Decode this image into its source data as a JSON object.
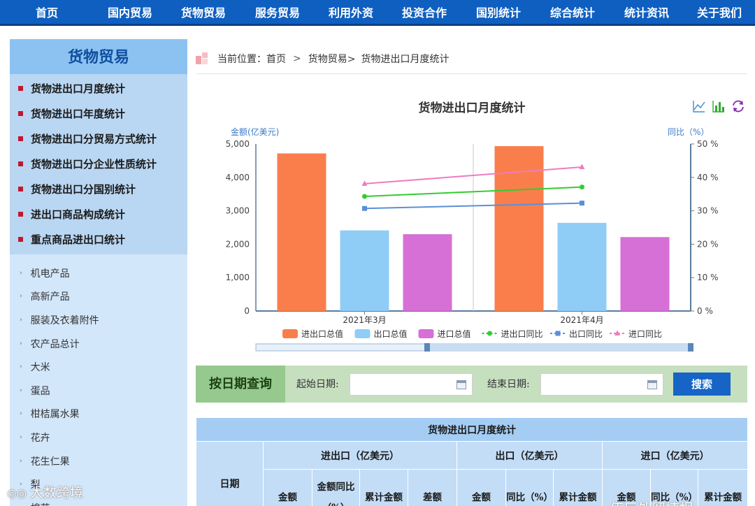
{
  "nav": {
    "items": [
      "首页",
      "国内贸易",
      "货物贸易",
      "服务贸易",
      "利用外资",
      "投资合作",
      "国别统计",
      "综合统计",
      "统计资讯",
      "关于我们"
    ]
  },
  "sidebar": {
    "title": "货物贸易",
    "main_items": [
      "货物进出口月度统计",
      "货物进出口年度统计",
      "货物进出口分贸易方式统计",
      "货物进出口分企业性质统计",
      "货物进出口分国别统计",
      "进出口商品构成统计",
      "重点商品进出口统计"
    ],
    "sub_items": [
      "机电产品",
      "高新产品",
      "服装及衣着附件",
      "农产品总计",
      "大米",
      "蛋品",
      "柑桔属水果",
      "花卉",
      "花生仁果",
      "梨",
      "棉花"
    ]
  },
  "breadcrumb": {
    "prefix": "当前位置：",
    "home": "首页",
    "sep": ">",
    "level1": "货物贸易>",
    "current": "货物进出口月度统计"
  },
  "chart_data": {
    "type": "bar",
    "title": "货物进出口月度统计",
    "categories": [
      "2021年3月",
      "2021年4月"
    ],
    "y_left": {
      "label": "金额(亿美元)",
      "min": 0,
      "max": 5000,
      "ticks": [
        "0",
        "1,000",
        "2,000",
        "3,000",
        "4,000",
        "5,000"
      ]
    },
    "y_right": {
      "label": "同比（%）",
      "min": 0,
      "max": 50,
      "ticks": [
        "0 %",
        "10 %",
        "20 %",
        "30 %",
        "40 %",
        "50 %"
      ]
    },
    "bar_series": [
      {
        "name": "进出口总值",
        "color": "#fa7e4b",
        "values": [
          4717,
          4935
        ]
      },
      {
        "name": "出口总值",
        "color": "#8fcdf7",
        "values": [
          2413,
          2639
        ]
      },
      {
        "name": "进口总值",
        "color": "#d670d6",
        "values": [
          2299,
          2213
        ]
      }
    ],
    "line_series": [
      {
        "name": "进出口同比",
        "color": "#33cc33",
        "marker": "circle",
        "values": [
          34.3,
          37.1
        ]
      },
      {
        "name": "出口同比",
        "color": "#5b8fd8",
        "marker": "square",
        "values": [
          30.7,
          32.3
        ]
      },
      {
        "name": "进口同比",
        "color": "#f07bbf",
        "marker": "triangle",
        "values": [
          38.1,
          43.1
        ]
      }
    ],
    "legend_position": "bottom",
    "grid": false
  },
  "search": {
    "title": "按日期查询",
    "start_label": "起始日期:",
    "end_label": "结束日期:",
    "start_value": "",
    "end_value": "",
    "button": "搜索"
  },
  "table": {
    "title": "货物进出口月度统计",
    "date_header": "日期",
    "groups": [
      "进出口（亿美元）",
      "出口（亿美元）",
      "进口（亿美元）"
    ],
    "sub_headers": [
      "金额",
      "金额同比（%）",
      "累计金额",
      "差额",
      "金额",
      "同比（%）",
      "累计金额",
      "金额",
      "同比（%）",
      "累计金额"
    ]
  },
  "watermark": {
    "left": "大数跨境",
    "right": "伍巨外贸情报"
  }
}
